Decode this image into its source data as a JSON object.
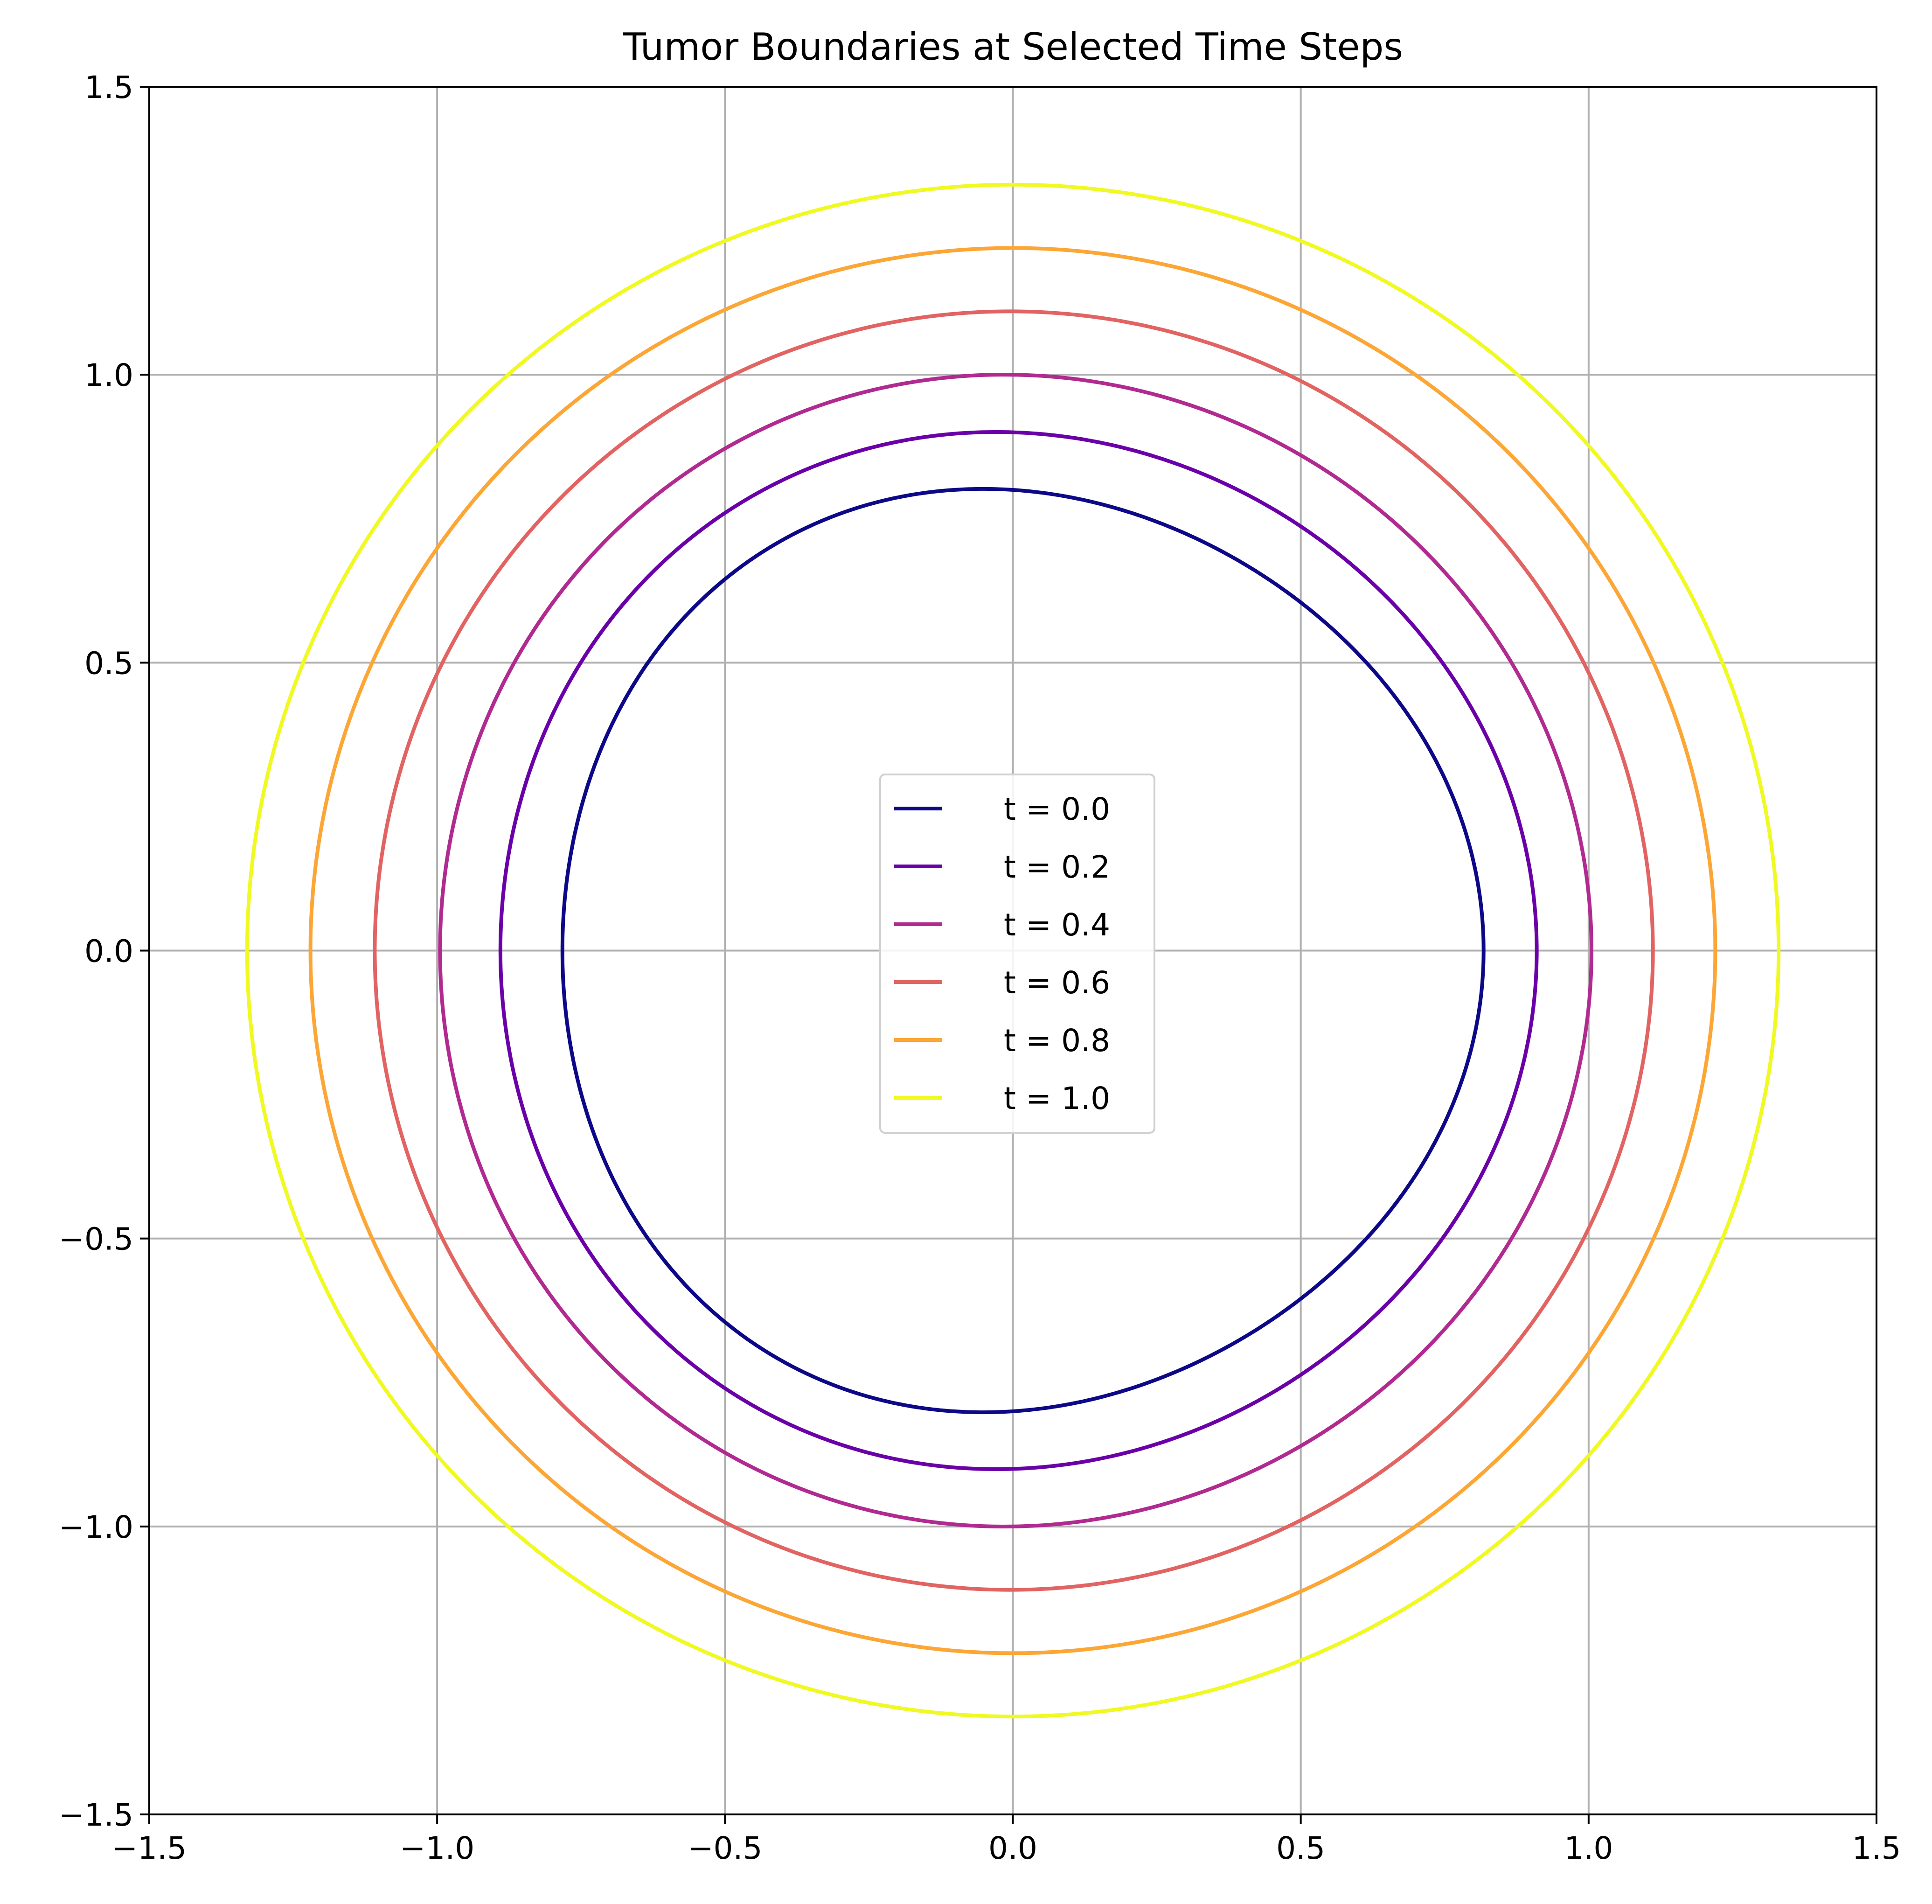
{
  "chart_data": {
    "type": "line",
    "title": "Tumor Boundaries at Selected Time Steps",
    "xlabel": "",
    "ylabel": "",
    "xlim": [
      -1.5,
      1.5
    ],
    "ylim": [
      -1.5,
      1.5
    ],
    "xticks": [
      -1.5,
      -1.0,
      -0.5,
      0.0,
      0.5,
      1.0,
      1.5
    ],
    "yticks": [
      -1.5,
      -1.0,
      -0.5,
      0.0,
      0.5,
      1.0,
      1.5
    ],
    "xtick_labels": [
      "−1.5",
      "−1.0",
      "−0.5",
      "0.0",
      "0.5",
      "1.0",
      "1.5"
    ],
    "ytick_labels": [
      "−1.5",
      "−1.0",
      "−0.5",
      "0.0",
      "0.5",
      "1.0",
      "1.5"
    ],
    "grid": true,
    "legend_position": "center",
    "shape": "closed boundary curves r(theta) = r0 * (1 + a*cos(3*theta))",
    "series": [
      {
        "name": "t = 0.0",
        "r0": 0.8,
        "a": 0.022,
        "color": "#0d0887"
      },
      {
        "name": "t = 0.2",
        "r0": 0.9,
        "a": 0.011,
        "color": "#6a00a8"
      },
      {
        "name": "t = 0.4",
        "r0": 1.0,
        "a": 0.005,
        "color": "#b12a90"
      },
      {
        "name": "t = 0.6",
        "r0": 1.11,
        "a": 0.0015,
        "color": "#e16462"
      },
      {
        "name": "t = 0.8",
        "r0": 1.22,
        "a": 0.0,
        "color": "#fca636"
      },
      {
        "name": "t = 1.0",
        "r0": 1.33,
        "a": 0.0,
        "color": "#f0f921"
      }
    ]
  }
}
